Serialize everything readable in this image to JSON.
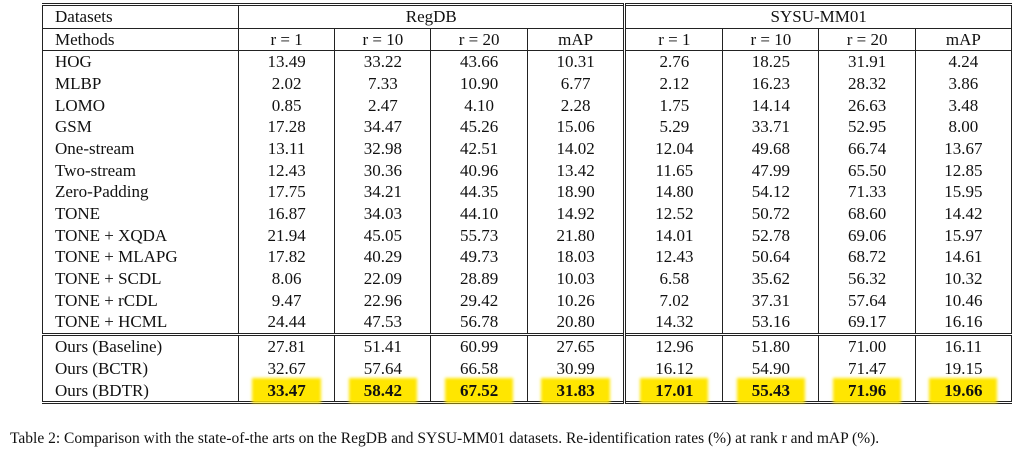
{
  "table": {
    "header": {
      "datasets": "Datasets",
      "groups": [
        "RegDB",
        "SYSU-MM01"
      ],
      "methods": "Methods",
      "columns": [
        "r = 1",
        "r = 10",
        "r = 20",
        "mAP",
        "r = 1",
        "r = 10",
        "r = 20",
        "mAP"
      ]
    },
    "rows": [
      [
        "HOG",
        "13.49",
        "33.22",
        "43.66",
        "10.31",
        "2.76",
        "18.25",
        "31.91",
        "4.24"
      ],
      [
        "MLBP",
        "2.02",
        "7.33",
        "10.90",
        "6.77",
        "2.12",
        "16.23",
        "28.32",
        "3.86"
      ],
      [
        "LOMO",
        "0.85",
        "2.47",
        "4.10",
        "2.28",
        "1.75",
        "14.14",
        "26.63",
        "3.48"
      ],
      [
        "GSM",
        "17.28",
        "34.47",
        "45.26",
        "15.06",
        "5.29",
        "33.71",
        "52.95",
        "8.00"
      ],
      [
        "One-stream",
        "13.11",
        "32.98",
        "42.51",
        "14.02",
        "12.04",
        "49.68",
        "66.74",
        "13.67"
      ],
      [
        "Two-stream",
        "12.43",
        "30.36",
        "40.96",
        "13.42",
        "11.65",
        "47.99",
        "65.50",
        "12.85"
      ],
      [
        "Zero-Padding",
        "17.75",
        "34.21",
        "44.35",
        "18.90",
        "14.80",
        "54.12",
        "71.33",
        "15.95"
      ],
      [
        "TONE",
        "16.87",
        "34.03",
        "44.10",
        "14.92",
        "12.52",
        "50.72",
        "68.60",
        "14.42"
      ],
      [
        "TONE + XQDA",
        "21.94",
        "45.05",
        "55.73",
        "21.80",
        "14.01",
        "52.78",
        "69.06",
        "15.97"
      ],
      [
        "TONE + MLAPG",
        "17.82",
        "40.29",
        "49.73",
        "18.03",
        "12.43",
        "50.64",
        "68.72",
        "14.61"
      ],
      [
        "TONE + SCDL",
        "8.06",
        "22.09",
        "28.89",
        "10.03",
        "6.58",
        "35.62",
        "56.32",
        "10.32"
      ],
      [
        "TONE + rCDL",
        "9.47",
        "22.96",
        "29.42",
        "10.26",
        "7.02",
        "37.31",
        "57.64",
        "10.46"
      ],
      [
        "TONE + HCML",
        "24.44",
        "47.53",
        "56.78",
        "20.80",
        "14.32",
        "53.16",
        "69.17",
        "16.16"
      ]
    ],
    "ours_rows": [
      [
        "Ours (Baseline)",
        "27.81",
        "51.41",
        "60.99",
        "27.65",
        "12.96",
        "51.80",
        "71.00",
        "16.11"
      ],
      [
        "Ours (BCTR)",
        "32.67",
        "57.64",
        "66.58",
        "30.99",
        "16.12",
        "54.90",
        "71.47",
        "19.15"
      ],
      [
        "Ours (BDTR)",
        "33.47",
        "58.42",
        "67.52",
        "31.83",
        "17.01",
        "55.43",
        "71.96",
        "19.66"
      ]
    ]
  },
  "caption": "Table 2: Comparison with the state-of-the arts on the RegDB and SYSU-MM01 datasets. Re-identification rates (%) at rank r and mAP (%)."
}
